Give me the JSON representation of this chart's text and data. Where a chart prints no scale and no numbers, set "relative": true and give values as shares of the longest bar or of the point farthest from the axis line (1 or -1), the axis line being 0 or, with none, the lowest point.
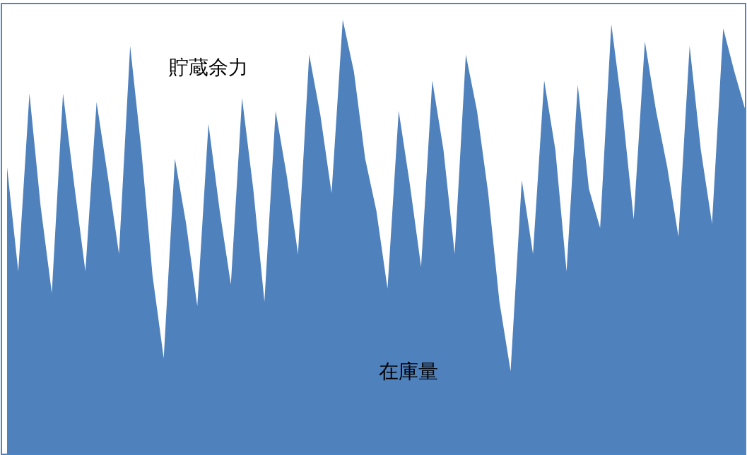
{
  "chart_data": {
    "type": "area",
    "relative": true,
    "color": "#4f81bd",
    "categories": [
      null,
      null,
      null,
      null,
      null,
      null,
      null,
      null,
      null,
      null,
      null,
      null,
      null,
      null,
      null,
      null,
      null,
      null,
      null,
      null,
      null,
      null,
      null,
      null,
      null,
      null,
      null,
      null,
      null,
      null,
      null,
      null,
      null,
      null,
      null,
      null,
      null,
      null,
      null,
      null,
      null,
      null,
      null,
      null,
      null,
      null,
      null,
      null,
      null,
      null,
      null,
      null,
      null,
      null,
      null,
      null,
      null,
      null,
      null,
      null,
      null,
      null,
      null,
      null,
      null,
      null,
      null
    ],
    "values": [
      0.66,
      0.42,
      0.83,
      0.57,
      0.37,
      0.83,
      0.62,
      0.42,
      0.81,
      0.64,
      0.46,
      0.94,
      0.7,
      0.41,
      0.22,
      0.68,
      0.53,
      0.34,
      0.76,
      0.56,
      0.39,
      0.82,
      0.61,
      0.35,
      0.79,
      0.64,
      0.46,
      0.92,
      0.78,
      0.6,
      1.0,
      0.88,
      0.68,
      0.56,
      0.38,
      0.79,
      0.62,
      0.43,
      0.86,
      0.7,
      0.46,
      0.92,
      0.79,
      0.6,
      0.35,
      0.19,
      0.63,
      0.46,
      0.86,
      0.7,
      0.42,
      0.85,
      0.61,
      0.52,
      0.99,
      0.79,
      0.54,
      0.95,
      0.79,
      0.66,
      0.5,
      0.94,
      0.7,
      0.53,
      0.98,
      0.88,
      0.79
    ],
    "annotations": [
      "貯蔵余力",
      "在庫量"
    ]
  }
}
